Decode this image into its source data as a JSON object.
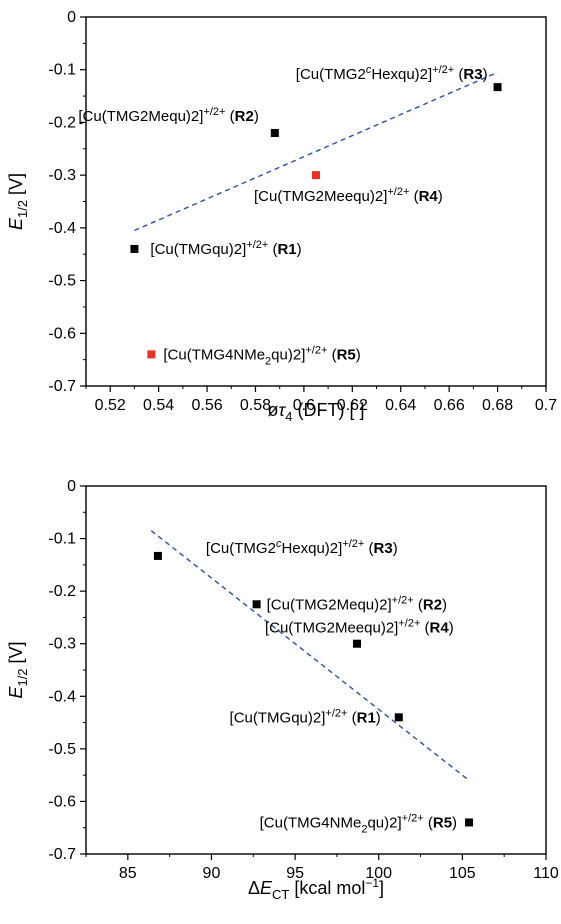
{
  "chart_data": [
    {
      "type": "scatter",
      "xlabel": "øτ4 (DFT) [ ]",
      "ylabel": "E1/2 [V]",
      "xlim": [
        0.51,
        0.7
      ],
      "ylim": [
        -0.7,
        0.0
      ],
      "xticks": [
        0.52,
        0.54,
        0.56,
        0.58,
        0.6,
        0.62,
        0.64,
        0.66,
        0.68,
        0.7
      ],
      "xtick_labels": [
        "0.52",
        "0.54",
        "0.56",
        "0.58",
        "0.6",
        "0.62",
        "0.64",
        "0.66",
        "0.68",
        "0.7"
      ],
      "yticks": [
        0,
        -0.1,
        -0.2,
        -0.3,
        -0.4,
        -0.5,
        -0.6,
        -0.7
      ],
      "ytick_labels": [
        "0",
        "-0.1",
        "-0.2",
        "-0.3",
        "-0.4",
        "-0.5",
        "-0.6",
        "-0.7"
      ],
      "grid": false,
      "points": [
        {
          "x": 0.53,
          "y": -0.44,
          "label": "[Cu(TMGqu)2]+/2+ (R1)",
          "color": "#000000"
        },
        {
          "x": 0.588,
          "y": -0.22,
          "label": "[Cu(TMG2Mequ)2]+/2+ (R2)",
          "color": "#000000"
        },
        {
          "x": 0.68,
          "y": -0.133,
          "label": "[Cu(TMG2cHexqu)2]+/2+ (R3)",
          "color": "#000000"
        },
        {
          "x": 0.605,
          "y": -0.3,
          "label": "[Cu(TMG2Meequ)2]+/2+ (R4)",
          "color": "#e8302a"
        },
        {
          "x": 0.537,
          "y": -0.64,
          "label": "[Cu(TMG4NMe2qu)2]+/2+ (R5)",
          "color": "#e8302a"
        }
      ],
      "fit_line": {
        "x": [
          0.53,
          0.68
        ],
        "y": [
          -0.405,
          -0.105
        ],
        "color": "#2e4db0",
        "style": "dashed"
      }
    },
    {
      "type": "scatter",
      "xlabel": "ΔECT [kcal mol−1]",
      "ylabel": "E1/2 [V]",
      "xlim": [
        82.5,
        110.0
      ],
      "ylim": [
        -0.7,
        0.0
      ],
      "xticks": [
        85,
        90,
        95,
        100,
        105,
        110
      ],
      "xtick_labels": [
        "85",
        "90",
        "95",
        "100",
        "105",
        "110"
      ],
      "yticks": [
        0,
        -0.1,
        -0.2,
        -0.3,
        -0.4,
        -0.5,
        -0.6,
        -0.7
      ],
      "ytick_labels": [
        "0",
        "-0.1",
        "-0.2",
        "-0.3",
        "-0.4",
        "-0.5",
        "-0.6",
        "-0.7"
      ],
      "grid": false,
      "points": [
        {
          "x": 86.8,
          "y": -0.133,
          "label": "[Cu(TMG2cHexqu)2]+/2+ (R3)",
          "color": "#000000"
        },
        {
          "x": 92.7,
          "y": -0.225,
          "label": "[Cu(TMG2Mequ)2]+/2+ (R2)",
          "color": "#000000"
        },
        {
          "x": 98.7,
          "y": -0.3,
          "label": "[Cu(TMG2Meequ)2]+/2+ (R4)",
          "color": "#000000"
        },
        {
          "x": 101.2,
          "y": -0.44,
          "label": "[Cu(TMGqu)2]+/2+ (R1)",
          "color": "#000000"
        },
        {
          "x": 105.4,
          "y": -0.64,
          "label": "[Cu(TMG4NMe2qu)2]+/2+ (R5)",
          "color": "#000000"
        }
      ],
      "fit_line": {
        "x": [
          86.4,
          105.4
        ],
        "y": [
          -0.085,
          -0.56
        ],
        "color": "#2e4db0",
        "style": "dashed"
      }
    }
  ]
}
